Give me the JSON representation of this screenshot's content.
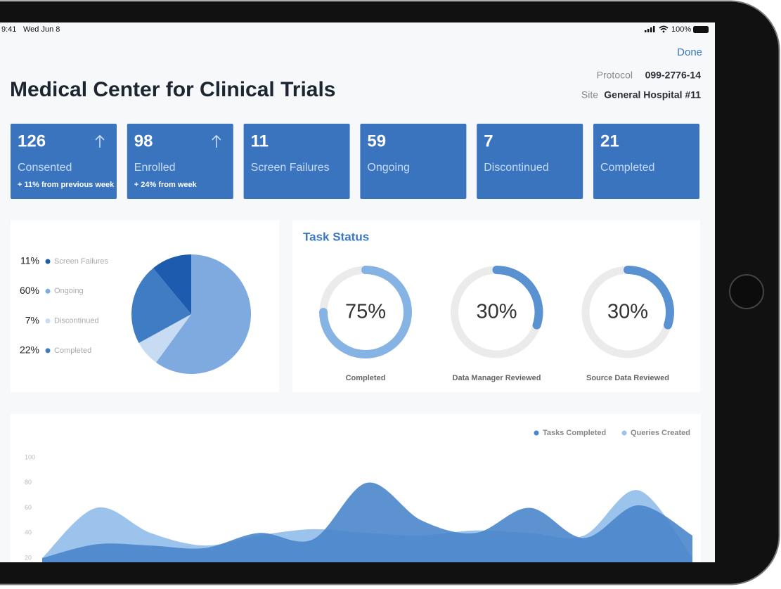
{
  "status_bar": {
    "time": "9:41",
    "date": "Wed Jun 8",
    "battery": "100%"
  },
  "header": {
    "done": "Done",
    "title": "Medical Center for Clinical Trials",
    "protocol_label": "Protocol",
    "protocol": "099-2776-14",
    "site_label": "Site",
    "site": "General Hospital #11"
  },
  "kpis": [
    {
      "value": 126,
      "label": "Consented",
      "note": "+ 11% from previous week"
    },
    {
      "value": 98,
      "label": "Enrolled",
      "note": "+ 24% from week"
    },
    {
      "value": 11,
      "label": "Screen Failures"
    },
    {
      "value": 59,
      "label": "Ongoing"
    },
    {
      "value": 7,
      "label": "Discontinued"
    },
    {
      "value": 21,
      "label": "Completed"
    }
  ],
  "pie_chart": {
    "type": "pie",
    "categories": [
      "Screen Failures",
      "Ongoing",
      "Discontinued",
      "Completed"
    ],
    "values": [
      11,
      60,
      7,
      22
    ],
    "value_labels": [
      "11%",
      "60%",
      "7%",
      "22%"
    ],
    "colors": [
      "#1c5bad",
      "#7eaadf",
      "#c7dcf3",
      "#3f7cc4"
    ]
  },
  "task_status": {
    "title": "Task Status",
    "items": [
      {
        "value": 75,
        "value_label": "75%",
        "label": "Completed",
        "color": "#84b3e4"
      },
      {
        "value": 30,
        "value_label": "30%",
        "label": "Data Manager Reviewed",
        "color": "#5a91d1"
      },
      {
        "value": 30,
        "value_label": "30%",
        "label": "Source Data Reviewed",
        "color": "#5a91d1"
      }
    ]
  },
  "area_chart": {
    "type": "area",
    "ylim": [
      20,
      100
    ],
    "yticks": [
      20,
      40,
      60,
      80,
      100
    ],
    "series": [
      {
        "name": "Tasks Completed",
        "color": "#4a86cb",
        "values": [
          20,
          31,
          30,
          28,
          40,
          35,
          80,
          50,
          40,
          60,
          36,
          62,
          38
        ]
      },
      {
        "name": "Queries Created",
        "color": "#9cc3ec",
        "values": [
          20,
          60,
          40,
          30,
          38,
          43,
          40,
          38,
          42,
          40,
          38,
          74,
          20
        ]
      }
    ]
  }
}
